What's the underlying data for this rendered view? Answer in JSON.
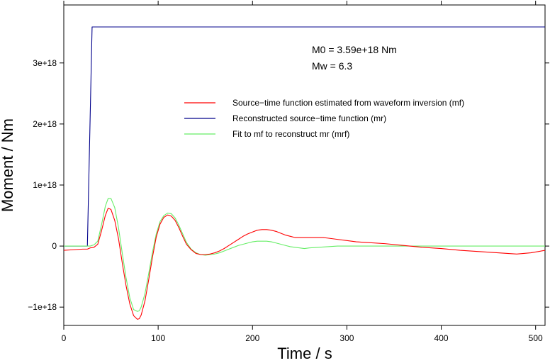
{
  "chart_data": {
    "type": "line",
    "xlabel": "Time / s",
    "ylabel": "Moment / Nm",
    "xlim": [
      0,
      510
    ],
    "ylim": [
      -1.3e+18,
      3.95e+18
    ],
    "x_ticks": [
      0,
      100,
      200,
      300,
      400,
      500
    ],
    "x_tick_labels": [
      "0",
      "100",
      "200",
      "300",
      "400",
      "500"
    ],
    "y_ticks": [
      -1e+18,
      0,
      1e+18,
      2e+18,
      3e+18
    ],
    "y_tick_labels": [
      "−1e+18",
      "0",
      "1e+18",
      "2e+18",
      "3e+18"
    ],
    "grid": false,
    "annotations": [
      "M0 = 3.59e+18 Nm",
      "Mw = 6.3"
    ],
    "legend_position": "right",
    "series": [
      {
        "name": "Source−time function estimated from waveform inversion (mf)",
        "color": "#ff0000",
        "x": [
          0,
          10,
          20,
          25,
          28,
          32,
          36,
          40,
          44,
          47,
          50,
          54,
          58,
          62,
          66,
          70,
          74,
          78,
          80,
          82,
          86,
          90,
          94,
          98,
          102,
          106,
          110,
          114,
          118,
          122,
          126,
          130,
          135,
          140,
          145,
          150,
          155,
          160,
          165,
          170,
          175,
          180,
          185,
          190,
          195,
          200,
          205,
          210,
          215,
          220,
          225,
          230,
          235,
          240,
          245,
          250,
          255,
          260,
          265,
          270,
          275,
          280,
          290,
          300,
          310,
          320,
          340,
          360,
          380,
          400,
          420,
          440,
          460,
          480,
          495,
          510
        ],
        "y": [
          -7e+16,
          -6e+16,
          -5e+16,
          -5e+16,
          -3e+16,
          -2e+16,
          3e+16,
          2.5e+17,
          5e+17,
          6.2e+17,
          6e+17,
          4.2e+17,
          1.2e+17,
          -2.8e+17,
          -6.5e+17,
          -9.5e+17,
          -1.14e+18,
          -1.2e+18,
          -1.19e+18,
          -1.13e+18,
          -9e+17,
          -5.5e+17,
          -1.8e+17,
          1.5e+17,
          3.6e+17,
          4.7e+17,
          5.1e+17,
          4.9e+17,
          4.2e+17,
          3e+17,
          1.6e+17,
          3e+16,
          -6e+16,
          -1.2e+17,
          -1.4e+17,
          -1.4e+17,
          -1.3e+17,
          -1.1e+17,
          -8e+16,
          -4e+16,
          1e+16,
          6e+16,
          1.1e+17,
          1.6e+17,
          2e+17,
          2.3e+17,
          2.6e+17,
          2.7e+17,
          2.7e+17,
          2.6e+17,
          2.4e+17,
          2.1e+17,
          1.8e+17,
          1.6e+17,
          1.4e+17,
          1.4e+17,
          1.4e+17,
          1.4e+17,
          1.4e+17,
          1.4e+17,
          1.4e+17,
          1.3e+17,
          1.1e+17,
          9e+16,
          7e+16,
          6e+16,
          4e+16,
          1e+16,
          -2e+16,
          -4e+16,
          -7e+16,
          -9e+16,
          -1.1e+17,
          -1.3e+17,
          -1.1e+17,
          -7e+16
        ]
      },
      {
        "name": "Reconstructed source−time function (mr)",
        "color": "#00008b",
        "x": [
          0,
          25,
          30,
          510
        ],
        "y": [
          0,
          0,
          3.59e+18,
          3.59e+18
        ]
      },
      {
        "name": "Fit to mf to reconstruct mr (mrf)",
        "color": "#66ee66",
        "x": [
          0,
          10,
          20,
          25,
          28,
          32,
          36,
          40,
          44,
          47,
          50,
          54,
          58,
          62,
          66,
          70,
          74,
          78,
          80,
          82,
          86,
          90,
          94,
          98,
          102,
          106,
          110,
          114,
          118,
          122,
          126,
          130,
          135,
          140,
          145,
          150,
          155,
          160,
          165,
          170,
          175,
          180,
          185,
          190,
          195,
          200,
          205,
          210,
          215,
          220,
          225,
          230,
          235,
          240,
          245,
          250,
          255,
          260,
          270,
          280,
          290,
          300,
          310,
          320,
          340,
          360,
          380,
          400,
          420,
          440,
          460,
          480,
          495,
          510
        ],
        "y": [
          0,
          0,
          0,
          0,
          0,
          2e+16,
          8e+16,
          3.5e+17,
          6.5e+17,
          7.8e+17,
          7.8e+17,
          6.3e+17,
          3e+17,
          -1.2e+17,
          -5.2e+17,
          -8.5e+17,
          -1.04e+18,
          -1.07e+18,
          -1.06e+18,
          -1e+18,
          -7.8e+17,
          -4.5e+17,
          -1e+17,
          2e+17,
          4e+17,
          5e+17,
          5.4e+17,
          5.3e+17,
          4.6e+17,
          3.4e+17,
          2e+17,
          6e+16,
          -5e+16,
          -1.1e+17,
          -1.4e+17,
          -1.5e+17,
          -1.4e+17,
          -1.3e+17,
          -1.1e+17,
          -8e+16,
          -5e+16,
          -2e+16,
          1e+16,
          3e+16,
          5e+16,
          7e+16,
          8e+16,
          8e+16,
          8e+16,
          7e+16,
          5e+16,
          3e+16,
          1e+16,
          -1e+16,
          -2e+16,
          -3e+16,
          -4e+16,
          -3e+16,
          -2e+16,
          -1e+16,
          0.0,
          0.0,
          0.0,
          0.0,
          0.0,
          0.0,
          0.0,
          0.0,
          0.0,
          0.0,
          0.0,
          0.0,
          0.0,
          0.0
        ]
      }
    ]
  }
}
